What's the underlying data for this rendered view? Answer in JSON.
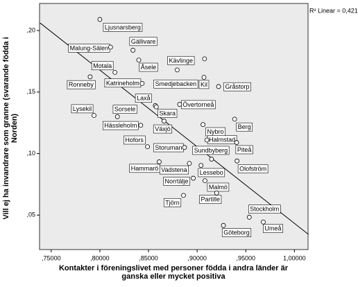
{
  "chart_data": {
    "type": "scatter",
    "x_label": [
      "Kontakter i föreningslivet med personer födda i andra länder är",
      "ganska eller mycket positiva"
    ],
    "y_label": [
      "Vill ej ha invandrare som granne (svarande födda i",
      "Norden)"
    ],
    "annotation": "R² Linear = 0,421",
    "xlim": [
      0.738,
      1.014
    ],
    "ylim": [
      0.022,
      0.222
    ],
    "xticks": [
      {
        "value": 0.75,
        "label": ",75000"
      },
      {
        "value": 0.8,
        "label": ",80000"
      },
      {
        "value": 0.85,
        "label": ",85000"
      },
      {
        "value": 0.9,
        "label": ",90000"
      },
      {
        "value": 0.95,
        "label": ",95000"
      },
      {
        "value": 1.0,
        "label": "1,00000"
      }
    ],
    "yticks": [
      {
        "value": 0.05,
        "label": ",05"
      },
      {
        "value": 0.1,
        "label": ",10"
      },
      {
        "value": 0.15,
        "label": ",15"
      },
      {
        "value": 0.2,
        "label": ",20"
      }
    ],
    "labels": [
      "Ljusnarsberg",
      "Malung-Sälen",
      "Gällivare",
      "Motala",
      "Åsele",
      "Kävlinge",
      "Ronneby",
      "Katrineholm",
      "Smedjebacken",
      "Kil",
      "Gråstorp",
      "Laxå",
      "Övertorneå",
      "Lysekil",
      "Sorsele",
      "Skara",
      "Berg",
      "Hässleholm",
      "Växjö",
      "Nybro",
      "Halmstad",
      "Hofors",
      "Storuman",
      "Sundbyberg",
      "Piteå",
      "Olofström",
      "Hammarö",
      "Vadstena",
      "Lessebo",
      "Norrtälje",
      "Malmö",
      "Partille",
      "Tjörn",
      "Stockholm",
      "Umeå",
      "Göteborg"
    ],
    "x": [
      0.8,
      0.811,
      0.834,
      0.8155,
      0.84,
      0.9076,
      0.79,
      0.8435,
      0.8795,
      0.907,
      0.922,
      0.857,
      0.882,
      0.794,
      0.818,
      0.858,
      0.9385,
      0.842,
      0.866,
      0.906,
      0.91,
      0.849,
      0.887,
      0.9148,
      0.9406,
      0.941,
      0.861,
      0.892,
      0.904,
      0.896,
      0.908,
      0.92,
      0.886,
      0.9536,
      0.968,
      0.927
    ],
    "y": [
      0.209,
      0.1865,
      0.184,
      0.166,
      0.176,
      0.177,
      0.1624,
      0.157,
      0.168,
      0.162,
      0.1545,
      0.139,
      0.14,
      0.131,
      0.13,
      0.138,
      0.128,
      0.123,
      0.1264,
      0.1236,
      0.111,
      0.1056,
      0.105,
      0.0955,
      0.109,
      0.094,
      0.0933,
      0.092,
      0.0904,
      0.08,
      0.078,
      0.068,
      0.066,
      0.0483,
      0.0444,
      0.0416
    ],
    "fit_line": {
      "x": [
        0.7385,
        1.0144
      ],
      "y": [
        0.2062,
        0.0343
      ]
    },
    "colors": {
      "plot_background": "#ebebeb",
      "point_fill": "#ffffff",
      "point_stroke": "#000000",
      "line": "#000000"
    }
  }
}
